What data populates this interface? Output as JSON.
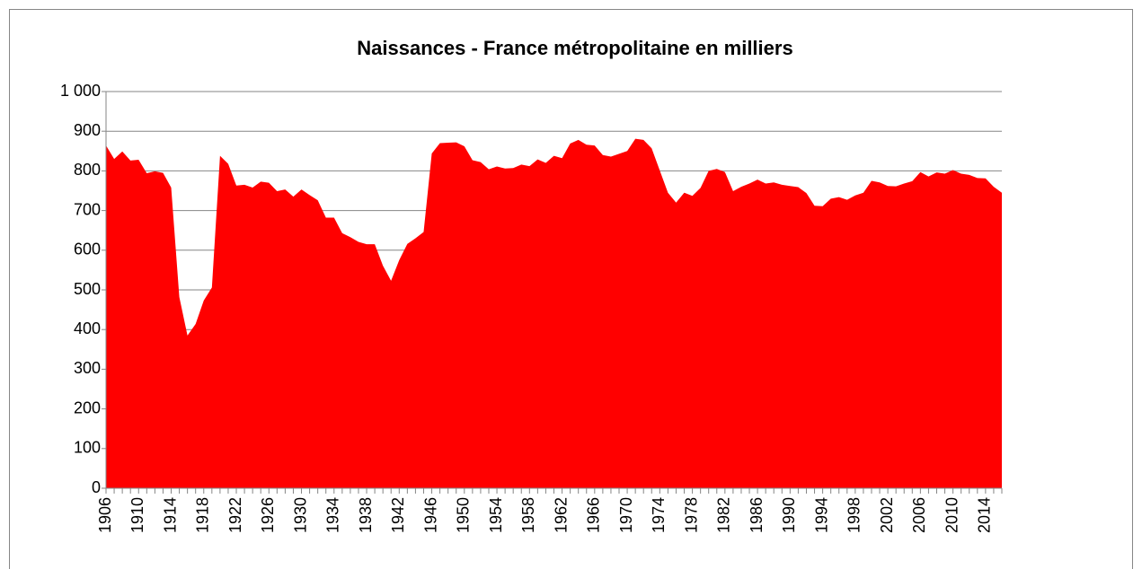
{
  "chart_data": {
    "type": "area",
    "title": "Naissances - France métropolitaine en milliers",
    "color": "#ff0000",
    "grid": true,
    "categories": [
      "1906",
      null,
      null,
      null,
      "1910",
      null,
      null,
      null,
      "1914",
      null,
      null,
      null,
      "1918",
      null,
      null,
      null,
      "1922",
      null,
      null,
      null,
      "1926",
      null,
      null,
      null,
      "1930",
      null,
      null,
      null,
      "1934",
      null,
      null,
      null,
      "1938",
      null,
      null,
      null,
      "1942",
      null,
      null,
      null,
      "1946",
      null,
      null,
      null,
      "1950",
      null,
      null,
      null,
      "1954",
      null,
      null,
      null,
      "1958",
      null,
      null,
      null,
      "1962",
      null,
      null,
      null,
      "1966",
      null,
      null,
      null,
      "1970",
      null,
      null,
      null,
      "1974",
      null,
      null,
      null,
      "1978",
      null,
      null,
      null,
      "1982",
      null,
      null,
      null,
      "1986",
      null,
      null,
      null,
      "1990",
      null,
      null,
      null,
      "1994",
      null,
      null,
      null,
      "1998",
      null,
      null,
      null,
      "2002",
      null,
      null,
      null,
      "2006",
      null,
      null,
      null,
      "2010",
      null,
      null,
      null,
      "2014",
      null,
      null
    ],
    "values": [
      864,
      830,
      849,
      826,
      828,
      794,
      799,
      795,
      758,
      482,
      385,
      414,
      473,
      506,
      838,
      818,
      763,
      765,
      758,
      773,
      770,
      749,
      753,
      735,
      753,
      739,
      726,
      682,
      682,
      643,
      633,
      621,
      615,
      615,
      561,
      523,
      575,
      616,
      630,
      646,
      844,
      870,
      871,
      872,
      862,
      827,
      822,
      804,
      811,
      806,
      807,
      816,
      812,
      829,
      820,
      838,
      832,
      869,
      878,
      866,
      864,
      840,
      836,
      843,
      850,
      881,
      878,
      857,
      801,
      745,
      720,
      745,
      737,
      757,
      800,
      805,
      797,
      749,
      760,
      768,
      778,
      768,
      771,
      765,
      762,
      759,
      744,
      712,
      711,
      730,
      734,
      727,
      738,
      745,
      775,
      771,
      762,
      761,
      768,
      774,
      797,
      786,
      796,
      793,
      802,
      793,
      790,
      782,
      781,
      760,
      745
    ],
    "ylim": [
      0,
      1000
    ],
    "yticks": [
      0,
      100,
      200,
      300,
      400,
      500,
      600,
      700,
      800,
      900,
      {
        "value": 1000,
        "label": "1 000"
      }
    ]
  }
}
